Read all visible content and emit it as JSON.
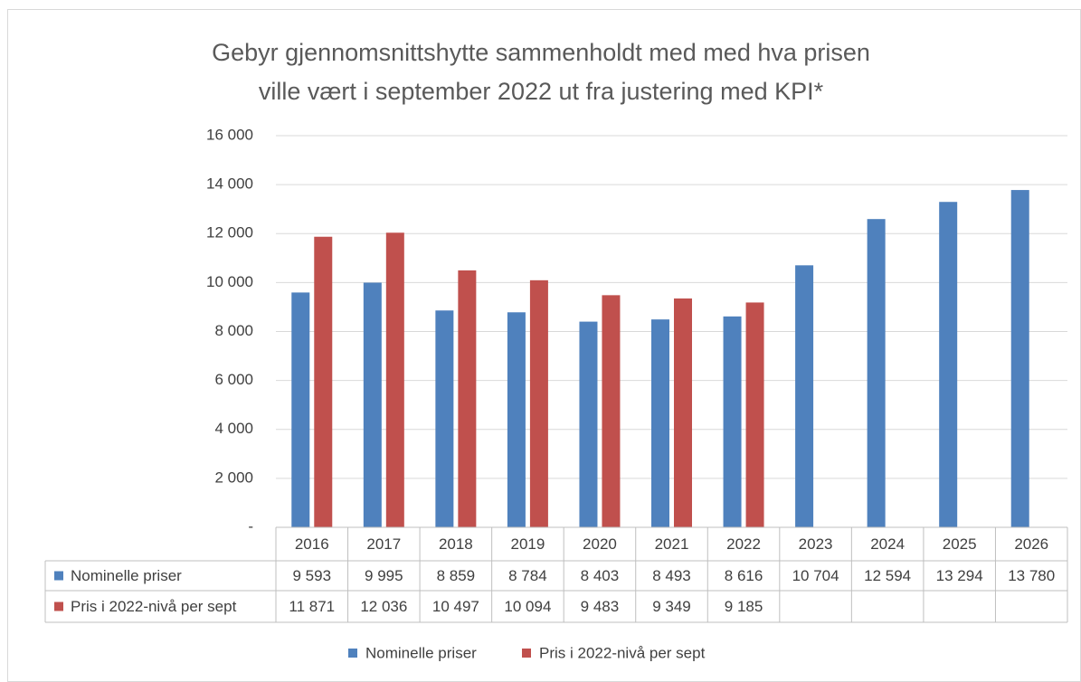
{
  "chart_data": {
    "type": "bar",
    "title": [
      "Gebyr gjennomsnittshytte sammenholdt med med hva prisen",
      "ville vært i september 2022 ut fra justering med KPI*"
    ],
    "categories": [
      "2016",
      "2017",
      "2018",
      "2019",
      "2020",
      "2021",
      "2022",
      "2023",
      "2024",
      "2025",
      "2026"
    ],
    "series": [
      {
        "name": "Nominelle priser",
        "color": "#4f81bd",
        "values": [
          9593,
          9995,
          8859,
          8784,
          8403,
          8493,
          8616,
          10704,
          12594,
          13294,
          13780
        ],
        "value_labels": [
          "9 593",
          "9 995",
          "8 859",
          "8 784",
          "8 403",
          "8 493",
          "8 616",
          "10 704",
          "12 594",
          "13 294",
          "13 780"
        ]
      },
      {
        "name": "Pris i 2022-nivå per sept",
        "color": "#c0504d",
        "values": [
          11871,
          12036,
          10497,
          10094,
          9483,
          9349,
          9185,
          null,
          null,
          null,
          null
        ],
        "value_labels": [
          "11 871",
          "12 036",
          "10 497",
          "10 094",
          "9 483",
          "9 349",
          "9 185",
          null,
          null,
          null,
          null
        ]
      }
    ],
    "ylim": [
      0,
      16000
    ],
    "yticks": [
      {
        "value": 0,
        "label": "-"
      },
      {
        "value": 2000,
        "label": "2 000"
      },
      {
        "value": 4000,
        "label": "4 000"
      },
      {
        "value": 6000,
        "label": "6 000"
      },
      {
        "value": 8000,
        "label": "8 000"
      },
      {
        "value": 10000,
        "label": "10 000"
      },
      {
        "value": 12000,
        "label": "12 000"
      },
      {
        "value": 14000,
        "label": "14 000"
      },
      {
        "value": 16000,
        "label": "16 000"
      }
    ],
    "grid": true,
    "legend": "bottom"
  }
}
